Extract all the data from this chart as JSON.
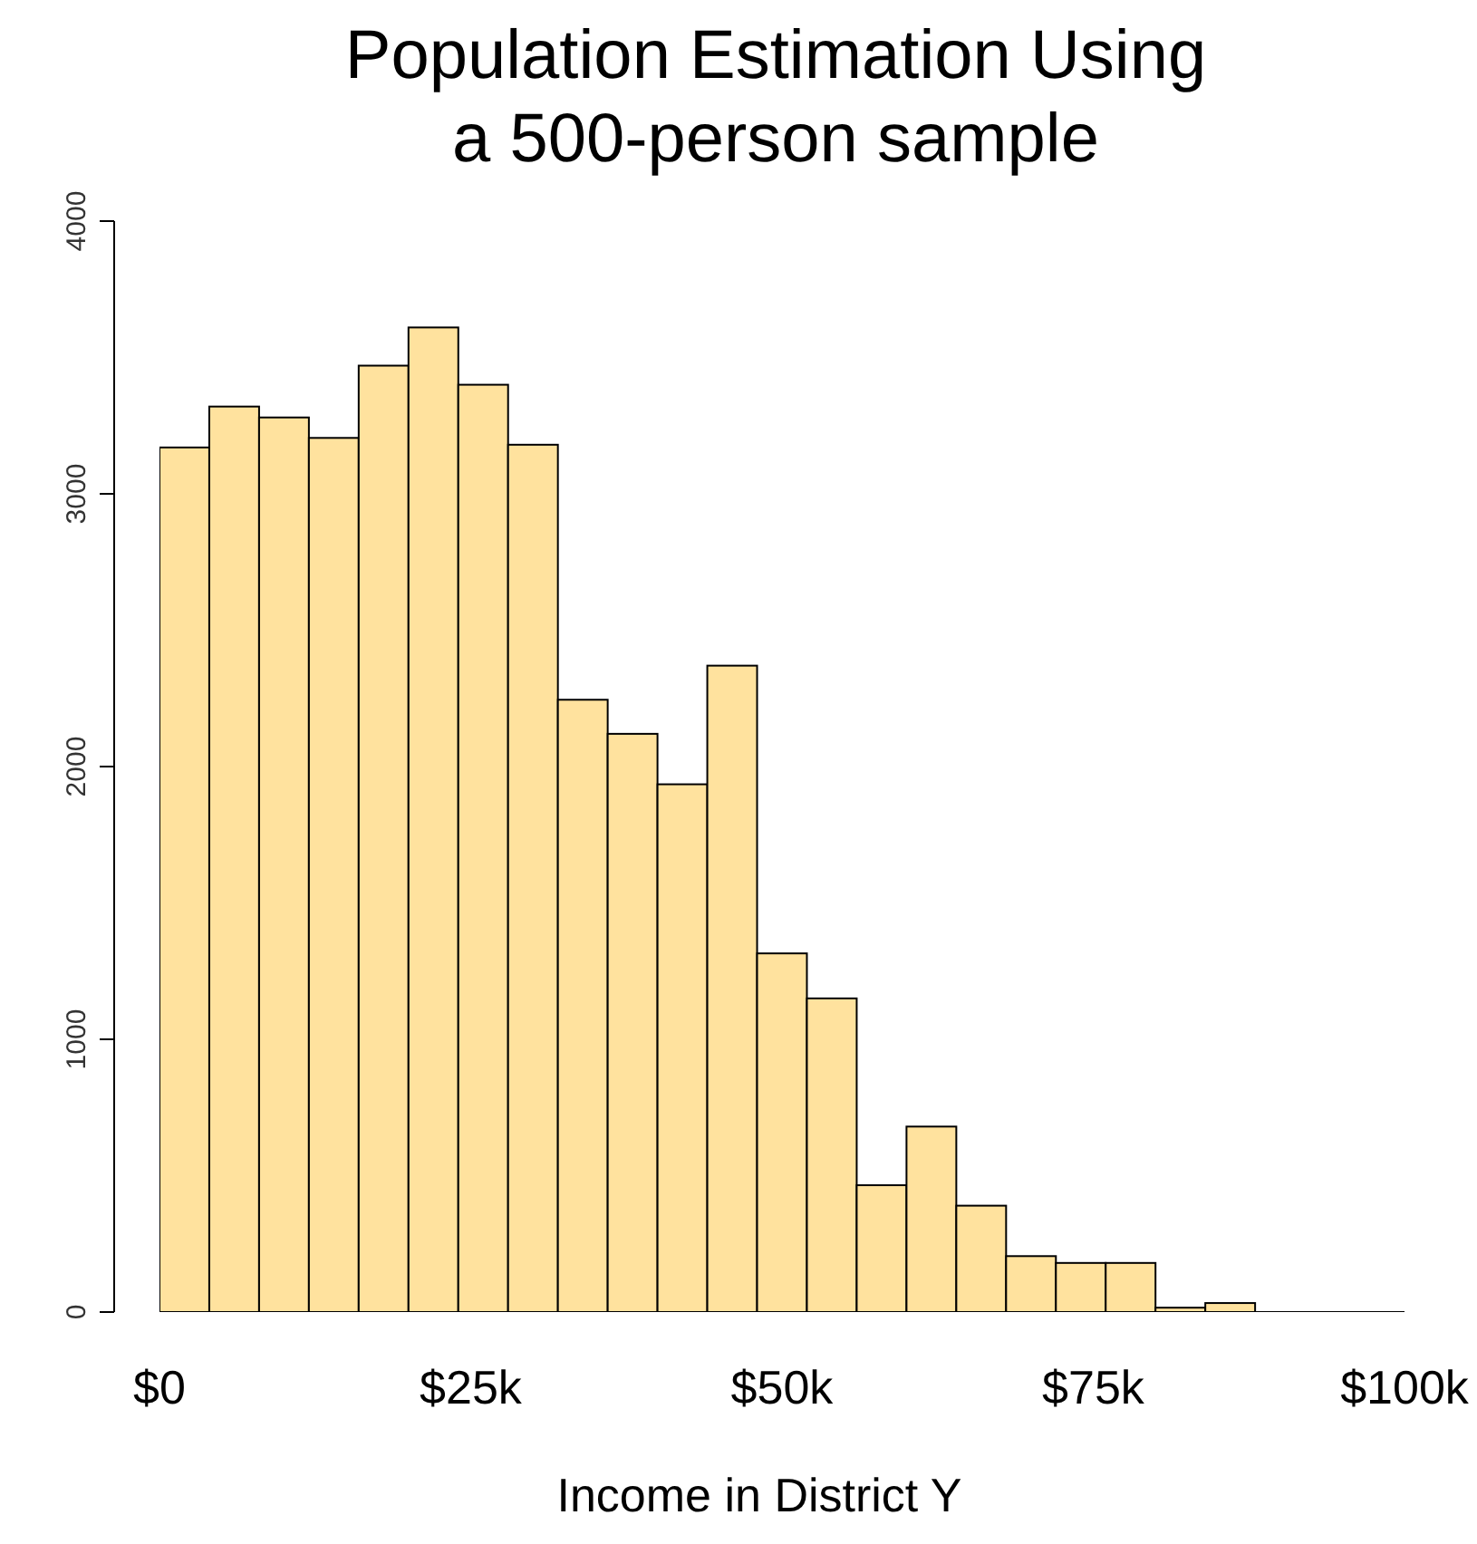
{
  "chart_data": {
    "type": "histogram",
    "title": "Population Estimation Using a 500-person sample",
    "xlabel": "Income in District Y",
    "bins": [
      0,
      4000,
      8000,
      12000,
      16000,
      20000,
      24000,
      28000,
      32000,
      36000,
      40000,
      44000,
      48000,
      52000,
      56000,
      60000,
      64000,
      68000,
      72000,
      76000,
      80000,
      84000,
      88000
    ],
    "values": [
      3170,
      3320,
      3280,
      3205,
      3470,
      3610,
      3400,
      3180,
      2245,
      2120,
      1935,
      2370,
      1315,
      1150,
      465,
      680,
      390,
      205,
      180,
      180,
      16,
      33
    ],
    "color": "#ffe29e",
    "xlim": [
      0,
      100000
    ],
    "xticks": [
      {
        "value": 0,
        "label": "$0"
      },
      {
        "value": 25000,
        "label": "$25k"
      },
      {
        "value": 50000,
        "label": "$50k"
      },
      {
        "value": 75000,
        "label": "$75k"
      },
      {
        "value": 100000,
        "label": "$100k"
      }
    ],
    "ylim": [
      0,
      4000
    ],
    "yticks": [
      0,
      1000,
      2000,
      3000,
      4000
    ],
    "grid": false
  }
}
